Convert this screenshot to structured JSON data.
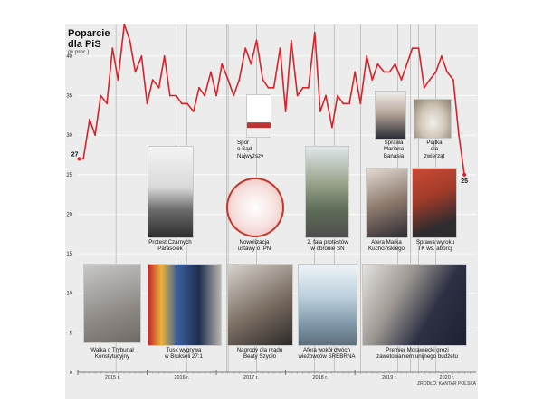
{
  "header": {
    "title_line1": "Poparcie",
    "title_line2": "dla PiS",
    "subtitle": "(w proc.)"
  },
  "source": "ŹRÓDŁO: KANTAR POLSKA",
  "colors": {
    "line": "#d8232a",
    "background": "#ececec",
    "grid": "#ffffff",
    "marker_line": "#9a9a9a"
  },
  "chart_data": {
    "type": "line",
    "title": "Poparcie dla PiS",
    "ylabel": "(w proc.)",
    "ylim": [
      0,
      44
    ],
    "yticks": [
      0,
      5,
      10,
      15,
      20,
      25,
      30,
      35,
      40
    ],
    "xlim": [
      2015.0,
      2020.67
    ],
    "year_labels": [
      {
        "label": "2015 r.",
        "x": 2015.5
      },
      {
        "label": "2016 r.",
        "x": 2016.5
      },
      {
        "label": "2017 r.",
        "x": 2017.5
      },
      {
        "label": "2018 r.",
        "x": 2018.5
      },
      {
        "label": "2019 r.",
        "x": 2019.5
      },
      {
        "label": "2020 r.",
        "x": 2020.33
      }
    ],
    "grid": true,
    "series": [
      {
        "values": [
          [
            2015.02,
            27
          ],
          [
            2015.08,
            27
          ],
          [
            2015.17,
            32
          ],
          [
            2015.25,
            30
          ],
          [
            2015.33,
            35
          ],
          [
            2015.42,
            34
          ],
          [
            2015.5,
            41
          ],
          [
            2015.58,
            37
          ],
          [
            2015.67,
            44
          ],
          [
            2015.75,
            42
          ],
          [
            2015.83,
            38
          ],
          [
            2015.92,
            40
          ],
          [
            2016.0,
            34
          ],
          [
            2016.08,
            37
          ],
          [
            2016.17,
            36
          ],
          [
            2016.25,
            40
          ],
          [
            2016.33,
            35
          ],
          [
            2016.42,
            35
          ],
          [
            2016.5,
            34
          ],
          [
            2016.58,
            34
          ],
          [
            2016.67,
            33
          ],
          [
            2016.75,
            36
          ],
          [
            2016.83,
            35
          ],
          [
            2016.92,
            38
          ],
          [
            2017.0,
            35
          ],
          [
            2017.08,
            39
          ],
          [
            2017.17,
            37
          ],
          [
            2017.25,
            35
          ],
          [
            2017.33,
            37
          ],
          [
            2017.42,
            41
          ],
          [
            2017.5,
            39
          ],
          [
            2017.58,
            42
          ],
          [
            2017.67,
            37
          ],
          [
            2017.75,
            36
          ],
          [
            2017.83,
            36
          ],
          [
            2017.92,
            41
          ],
          [
            2018.0,
            33
          ],
          [
            2018.08,
            42
          ],
          [
            2018.17,
            35
          ],
          [
            2018.25,
            36
          ],
          [
            2018.33,
            36
          ],
          [
            2018.42,
            43
          ],
          [
            2018.5,
            33
          ],
          [
            2018.58,
            35
          ],
          [
            2018.67,
            31
          ],
          [
            2018.75,
            35
          ],
          [
            2018.83,
            34
          ],
          [
            2018.92,
            34
          ],
          [
            2019.0,
            38
          ],
          [
            2019.08,
            34
          ],
          [
            2019.17,
            40
          ],
          [
            2019.25,
            37
          ],
          [
            2019.33,
            39
          ],
          [
            2019.42,
            38
          ],
          [
            2019.5,
            38
          ],
          [
            2019.58,
            39
          ],
          [
            2019.67,
            37
          ],
          [
            2019.75,
            39
          ],
          [
            2019.83,
            41
          ],
          [
            2019.92,
            41
          ],
          [
            2020.0,
            36
          ],
          [
            2020.08,
            37
          ],
          [
            2020.17,
            38
          ],
          [
            2020.25,
            40
          ],
          [
            2020.33,
            38
          ],
          [
            2020.42,
            37
          ],
          [
            2020.5,
            30
          ],
          [
            2020.58,
            25
          ]
        ]
      }
    ],
    "point_labels": [
      {
        "x": 2015.02,
        "y": 27,
        "text": "27"
      },
      {
        "x": 2020.58,
        "y": 25,
        "text": "25"
      }
    ],
    "annotations": [
      {
        "x": 2015.55,
        "lines": [
          "Walka o Trybunał",
          "Konstytucyjny"
        ]
      },
      {
        "x": 2016.42,
        "lines": [
          "Protest Czarnych",
          "Parasolek"
        ]
      },
      {
        "x": 2016.57,
        "lines": [
          "Tusk wygrywa",
          "w Brukseli 27:1"
        ]
      },
      {
        "x": 2017.17,
        "lines": [
          "Spór",
          "o Sąd",
          "Najwyższy"
        ]
      },
      {
        "x": 2017.15,
        "lines": [
          "Nowelizacja",
          "ustawy o IPN"
        ]
      },
      {
        "x": 2017.58,
        "lines": [
          "Nagrody dla rządu",
          "Beaty Szydło"
        ]
      },
      {
        "x": 2018.7,
        "lines": [
          "2. fala protestów",
          "w obronie SN"
        ]
      },
      {
        "x": 2018.42,
        "lines": [
          "Afera wokół dwóch",
          "wieżowców SREBRNA"
        ]
      },
      {
        "x": 2019.08,
        "lines": [
          "Afera Marka",
          "Kuchcińskiego"
        ]
      },
      {
        "x": 2019.8,
        "lines": [
          "Sprawa",
          "Mariana",
          "Banasia"
        ]
      },
      {
        "x": 2020.17,
        "lines": [
          "Piątka",
          "dla",
          "zwierząt"
        ]
      },
      {
        "x": 2019.62,
        "lines": [
          "Sprawa wyroku",
          "TK ws. aborcji"
        ]
      },
      {
        "x": 2019.92,
        "lines": [
          "Premier Morawiecki grozi",
          "zawetowaniem unijnego budżetu"
        ]
      }
    ]
  }
}
